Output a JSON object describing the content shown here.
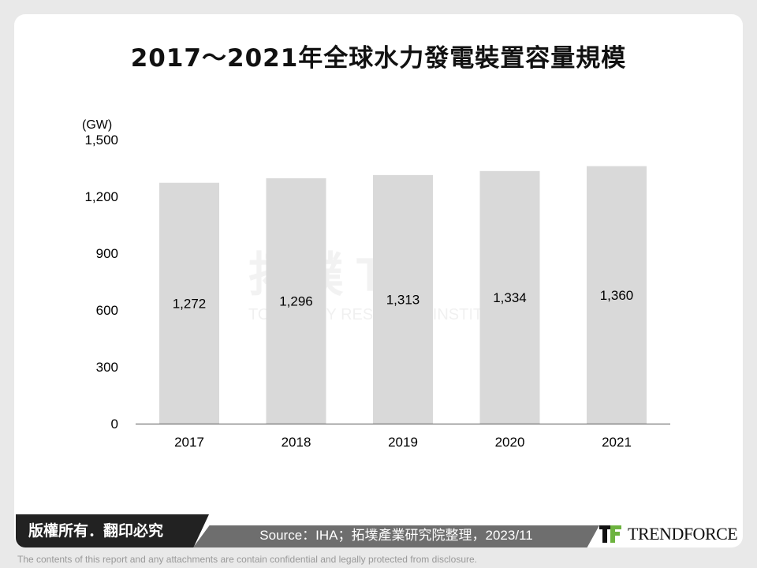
{
  "title": "2017～2021年全球水力發電裝置容量規模",
  "chart_data": {
    "type": "bar",
    "title": "2017～2021年全球水力發電裝置容量規模",
    "ylabel": "(GW)",
    "categories": [
      "2017",
      "2018",
      "2019",
      "2020",
      "2021"
    ],
    "values": [
      1272,
      1296,
      1313,
      1334,
      1360
    ],
    "data_labels": [
      "1,272",
      "1,296",
      "1,313",
      "1,334",
      "1,360"
    ],
    "ylim": [
      0,
      1500
    ],
    "yticks": [
      0,
      300,
      600,
      900,
      1200,
      1500
    ],
    "ytick_labels": [
      "0",
      "300",
      "600",
      "900",
      "1,200",
      "1,500"
    ],
    "grid": false,
    "bar_color": "#d9d9d9"
  },
  "watermark": {
    "main": "拓樸 TRI",
    "sub": "TOPOLOGY RESEARCH INSTITUTE"
  },
  "footer": {
    "copyright": "版權所有．翻印必究",
    "source": "Source：IHA；拓墣產業研究院整理，2023/11",
    "logo": "TRENDFORCE",
    "disclaimer": "The contents of this report and any attachments are contain confidential and legally protected from disclosure."
  }
}
